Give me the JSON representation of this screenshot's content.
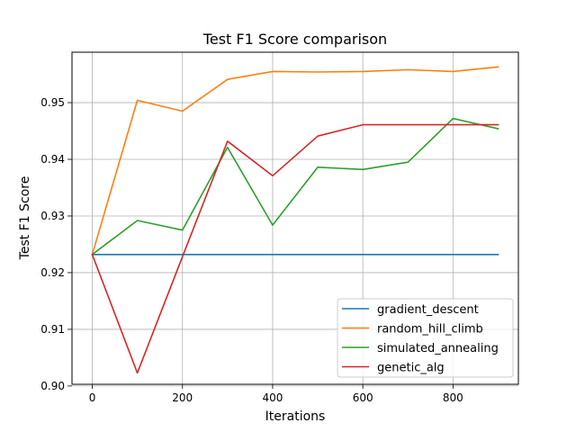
{
  "chart_data": {
    "type": "line",
    "title": "Test F1 Score comparison",
    "xlabel": "Iterations",
    "ylabel": "Test F1 Score",
    "x": [
      0,
      100,
      200,
      300,
      400,
      500,
      600,
      700,
      800,
      900
    ],
    "xlim": [
      -45,
      945
    ],
    "ylim": [
      0.9003,
      0.9589
    ],
    "xticks": [
      0,
      200,
      400,
      600,
      800
    ],
    "yticks": [
      0.9,
      0.91,
      0.92,
      0.93,
      0.94,
      0.95
    ],
    "grid": true,
    "legend_position": "lower-right",
    "series": [
      {
        "name": "gradient_descent",
        "color": "#1f77b4",
        "values": [
          0.9232,
          0.9232,
          0.9232,
          0.9232,
          0.9232,
          0.9232,
          0.9232,
          0.9232,
          0.9232,
          0.9232
        ]
      },
      {
        "name": "random_hill_climb",
        "color": "#ff7f0e",
        "values": [
          0.9232,
          0.9504,
          0.9485,
          0.9541,
          0.9555,
          0.9554,
          0.9555,
          0.9558,
          0.9555,
          0.9563
        ]
      },
      {
        "name": "simulated_annealing",
        "color": "#2ca02c",
        "values": [
          0.9232,
          0.9292,
          0.9275,
          0.9421,
          0.9284,
          0.9386,
          0.9382,
          0.9395,
          0.9472,
          0.9454
        ]
      },
      {
        "name": "genetic_alg",
        "color": "#d62728",
        "values": [
          0.9232,
          0.9023,
          0.9228,
          0.9432,
          0.9371,
          0.9441,
          0.9461,
          0.9461,
          0.9461,
          0.9461
        ]
      }
    ]
  }
}
